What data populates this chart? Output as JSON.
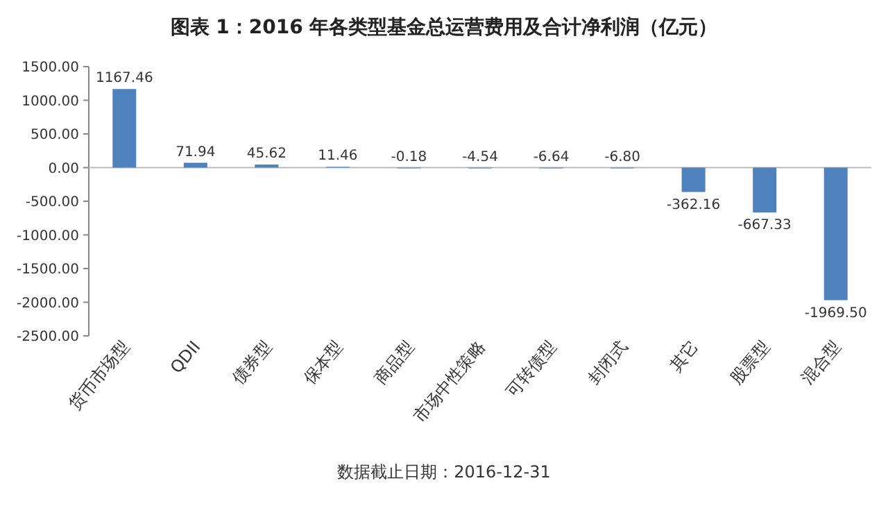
{
  "chart_data": {
    "type": "bar",
    "title": "图表 1：2016 年各类型基金总运营费用及合计净利润（亿元）",
    "categories": [
      "货币市场型",
      "QDII",
      "债券型",
      "保本型",
      "商品型",
      "市场中性策略",
      "可转债型",
      "封闭式",
      "其它",
      "股票型",
      "混合型"
    ],
    "values": [
      1167.46,
      71.94,
      45.62,
      11.46,
      -0.18,
      -4.54,
      -6.64,
      -6.8,
      -362.16,
      -667.33,
      -1969.5
    ],
    "value_labels": [
      "1167.46",
      "71.94",
      "45.62",
      "11.46",
      "-0.18",
      "-4.54",
      "-6.64",
      "-6.80",
      "-362.16",
      "-667.33",
      "-1969.50"
    ],
    "color": "#4f81bd",
    "ylim": [
      -2500,
      1500
    ],
    "yticks": [
      {
        "value": 1500,
        "label": "1500.00"
      },
      {
        "value": 1000,
        "label": "1000.00"
      },
      {
        "value": 500,
        "label": "500.00"
      },
      {
        "value": 0,
        "label": "0.00"
      },
      {
        "value": -500,
        "label": "-500.00"
      },
      {
        "value": -1000,
        "label": "-1000.00"
      },
      {
        "value": -1500,
        "label": "-1500.00"
      },
      {
        "value": -2000,
        "label": "-2000.00"
      },
      {
        "value": -2500,
        "label": "-2500.00"
      }
    ],
    "annotations": [
      "数据截止日期：2016-12-31"
    ]
  }
}
